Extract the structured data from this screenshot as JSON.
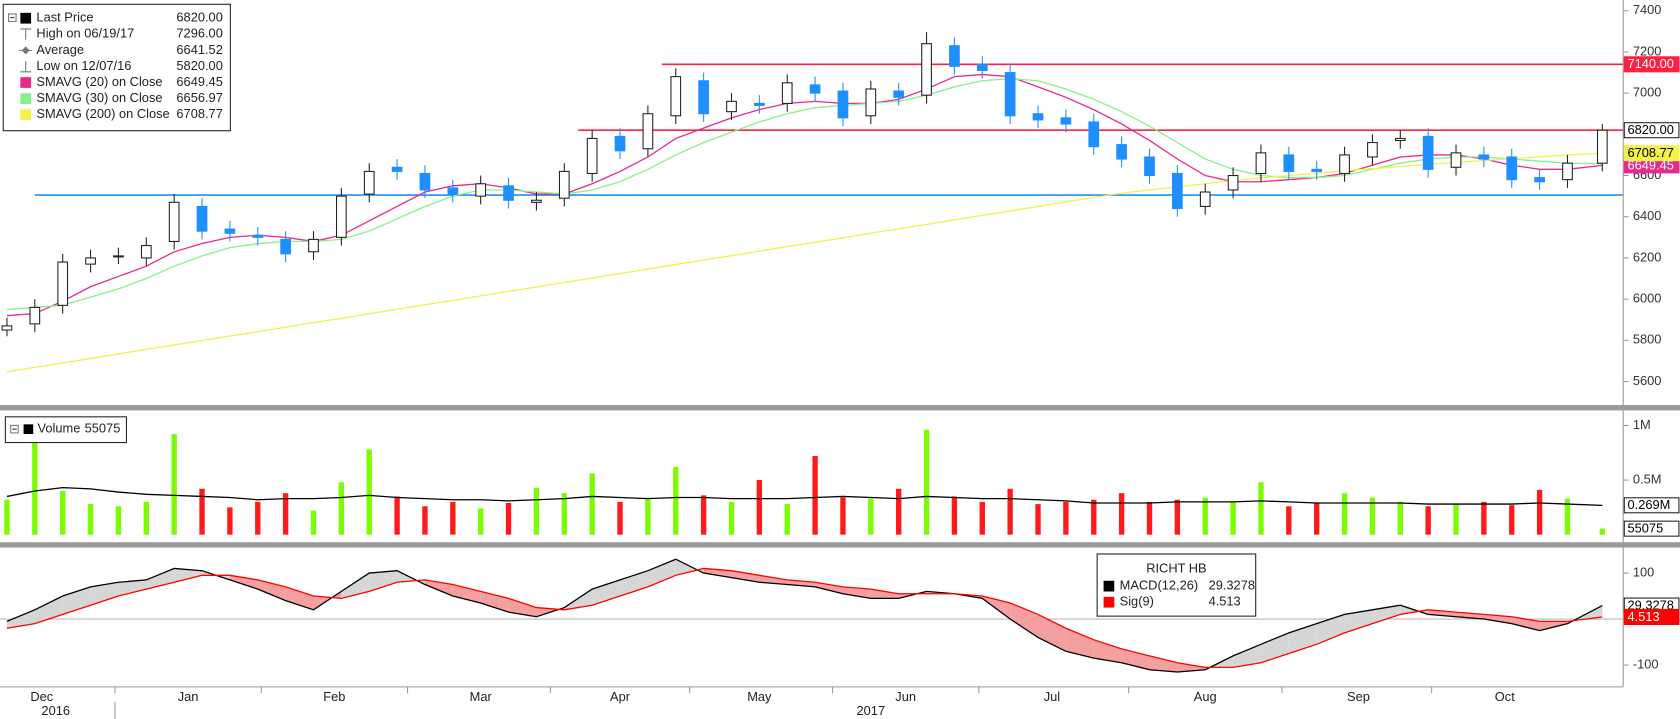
{
  "chart_data": [
    {
      "type": "candlestick",
      "x": [
        0,
        4,
        8,
        12,
        16,
        20,
        24,
        28,
        32,
        36,
        40,
        44,
        48,
        52,
        56,
        60,
        64,
        68,
        72,
        76,
        80,
        84,
        88,
        92,
        96,
        100,
        104,
        108,
        112,
        116,
        120,
        124,
        128,
        132,
        136,
        140,
        144,
        148,
        152,
        156,
        160,
        164,
        168,
        172,
        176,
        180,
        184,
        188,
        192,
        196,
        200,
        204,
        208,
        212,
        216,
        220,
        224,
        229
      ],
      "open": [
        5850,
        5880,
        5970,
        6170,
        6210,
        6200,
        6280,
        6450,
        6340,
        6310,
        6290,
        6230,
        6300,
        6510,
        6640,
        6610,
        6540,
        6500,
        6550,
        6470,
        6490,
        6610,
        6790,
        6730,
        6890,
        7060,
        6910,
        6950,
        6950,
        7040,
        7010,
        6890,
        7010,
        6990,
        7230,
        7140,
        7100,
        6900,
        6880,
        6860,
        6750,
        6690,
        6610,
        6450,
        6530,
        6610,
        6700,
        6630,
        6610,
        6690,
        6770,
        6790,
        6640,
        6700,
        6690,
        6590,
        6580,
        6660
      ],
      "high": [
        5910,
        6000,
        6220,
        6240,
        6250,
        6300,
        6510,
        6490,
        6380,
        6350,
        6330,
        6330,
        6540,
        6660,
        6680,
        6650,
        6580,
        6600,
        6590,
        6520,
        6660,
        6820,
        6830,
        6940,
        7120,
        7100,
        7000,
        6990,
        7090,
        7080,
        7050,
        7060,
        7050,
        7296,
        7270,
        7180,
        7140,
        6940,
        6920,
        6900,
        6790,
        6730,
        6650,
        6560,
        6640,
        6750,
        6740,
        6670,
        6740,
        6800,
        6820,
        6830,
        6750,
        6740,
        6730,
        6630,
        6700,
        6850
      ],
      "low": [
        5820,
        5840,
        5930,
        6130,
        6170,
        6160,
        6240,
        6290,
        6280,
        6260,
        6180,
        6190,
        6260,
        6470,
        6580,
        6490,
        6470,
        6460,
        6440,
        6430,
        6450,
        6570,
        6680,
        6690,
        6850,
        6860,
        6870,
        6900,
        6910,
        6960,
        6840,
        6850,
        6940,
        6950,
        7090,
        7070,
        6850,
        6830,
        6810,
        6700,
        6640,
        6560,
        6400,
        6410,
        6490,
        6570,
        6580,
        6580,
        6570,
        6650,
        6730,
        6590,
        6600,
        6640,
        6540,
        6530,
        6540,
        6620
      ],
      "close": [
        5870,
        5960,
        6180,
        6200,
        6210,
        6260,
        6470,
        6330,
        6320,
        6300,
        6220,
        6290,
        6500,
        6620,
        6620,
        6530,
        6510,
        6560,
        6480,
        6480,
        6620,
        6780,
        6720,
        6900,
        7080,
        6900,
        6960,
        6940,
        7050,
        7000,
        6880,
        7020,
        6980,
        7240,
        7130,
        7110,
        6890,
        6870,
        6850,
        6740,
        6680,
        6600,
        6440,
        6520,
        6600,
        6710,
        6620,
        6620,
        6700,
        6760,
        6780,
        6630,
        6710,
        6680,
        6580,
        6570,
        6660,
        6820
      ],
      "up_color": "#ffffff",
      "down_color": "#1e8fff",
      "stats": [
        {
          "name": "Last Price",
          "value": "6820.00"
        },
        {
          "name": "High on 06/19/17",
          "value": "7296.00"
        },
        {
          "name": "Average",
          "value": "6641.52"
        },
        {
          "name": "Low on 12/07/16",
          "value": "5820.00"
        }
      ],
      "series": [
        {
          "name": "SMAVG (20) on Close",
          "color": "#e8288a",
          "end_label": true,
          "values": [
            5920,
            5930,
            5990,
            6060,
            6110,
            6160,
            6230,
            6270,
            6300,
            6310,
            6300,
            6280,
            6310,
            6380,
            6450,
            6520,
            6550,
            6560,
            6540,
            6510,
            6510,
            6560,
            6620,
            6690,
            6780,
            6830,
            6880,
            6920,
            6950,
            6960,
            6950,
            6950,
            6970,
            7020,
            7080,
            7090,
            7080,
            7030,
            6980,
            6920,
            6850,
            6770,
            6680,
            6600,
            6570,
            6570,
            6580,
            6590,
            6610,
            6650,
            6690,
            6700,
            6700,
            6680,
            6650,
            6630,
            6630,
            6649.45
          ]
        },
        {
          "name": "SMAVG (30) on Close",
          "color": "#88f088",
          "end_label": false,
          "values": [
            5950,
            5960,
            5970,
            6010,
            6050,
            6100,
            6160,
            6210,
            6250,
            6270,
            6280,
            6280,
            6290,
            6330,
            6390,
            6450,
            6500,
            6530,
            6530,
            6520,
            6510,
            6530,
            6570,
            6630,
            6700,
            6760,
            6810,
            6860,
            6900,
            6930,
            6940,
            6950,
            6960,
            6990,
            7030,
            7060,
            7070,
            7060,
            7020,
            6970,
            6910,
            6840,
            6760,
            6680,
            6630,
            6600,
            6590,
            6590,
            6600,
            6630,
            6660,
            6680,
            6690,
            6690,
            6680,
            6670,
            6660,
            6656.97
          ]
        },
        {
          "name": "SMAVG (200) on Close",
          "color": "#f2f24a",
          "end_label": true,
          "values": [
            5647,
            5669,
            5690,
            5712,
            5734,
            5756,
            5777,
            5799,
            5821,
            5842,
            5864,
            5886,
            5907,
            5929,
            5951,
            5973,
            5994,
            6016,
            6038,
            6059,
            6081,
            6103,
            6124,
            6146,
            6168,
            6190,
            6211,
            6233,
            6255,
            6276,
            6298,
            6320,
            6341,
            6363,
            6385,
            6407,
            6428,
            6450,
            6472,
            6493,
            6515,
            6530,
            6545,
            6560,
            6575,
            6588,
            6600,
            6612,
            6623,
            6634,
            6644,
            6654,
            6664,
            6673,
            6682,
            6691,
            6700,
            6708.77
          ]
        }
      ],
      "hlines": [
        {
          "value": 7140,
          "x_start": 94,
          "color": "#ff2040",
          "label": "7140.00"
        },
        {
          "value": 6820,
          "x_start": 82,
          "color": "#ff2040"
        },
        {
          "value": 6505,
          "x_start": 4,
          "color": "#1e8fff"
        }
      ],
      "xlim": [
        -1,
        232
      ],
      "ylim": [
        5486,
        7452
      ],
      "yticks": [
        5600,
        5800,
        6000,
        6200,
        6400,
        6600,
        6800,
        7000,
        7200,
        7400
      ]
    },
    {
      "type": "bar",
      "x": [
        0,
        4,
        8,
        12,
        16,
        20,
        24,
        28,
        32,
        36,
        40,
        44,
        48,
        52,
        56,
        60,
        64,
        68,
        72,
        76,
        80,
        84,
        88,
        92,
        96,
        100,
        104,
        108,
        112,
        116,
        120,
        124,
        128,
        132,
        136,
        140,
        144,
        148,
        152,
        156,
        160,
        164,
        168,
        172,
        176,
        180,
        184,
        188,
        192,
        196,
        200,
        204,
        208,
        212,
        216,
        220,
        224,
        229
      ],
      "series": [
        {
          "name": "Volume",
          "values": [
            320000,
            850000,
            400000,
            280000,
            260000,
            300000,
            920000,
            420000,
            250000,
            300000,
            380000,
            220000,
            480000,
            780000,
            350000,
            260000,
            300000,
            240000,
            290000,
            430000,
            380000,
            560000,
            300000,
            340000,
            620000,
            360000,
            300000,
            500000,
            280000,
            720000,
            340000,
            330000,
            420000,
            960000,
            350000,
            300000,
            420000,
            280000,
            300000,
            320000,
            380000,
            300000,
            320000,
            340000,
            300000,
            480000,
            260000,
            290000,
            380000,
            340000,
            300000,
            260000,
            280000,
            300000,
            270000,
            410000,
            330000,
            55075
          ]
        }
      ],
      "up_color": "#7cfc00",
      "down_color": "#ff1a1a",
      "average": {
        "color": "#000000",
        "last_label": "0.269M",
        "values": [
          350000,
          400000,
          430000,
          420000,
          390000,
          370000,
          360000,
          350000,
          340000,
          320000,
          330000,
          330000,
          340000,
          360000,
          340000,
          330000,
          320000,
          320000,
          310000,
          320000,
          330000,
          350000,
          340000,
          330000,
          340000,
          340000,
          330000,
          330000,
          330000,
          340000,
          350000,
          340000,
          330000,
          350000,
          340000,
          330000,
          330000,
          320000,
          310000,
          290000,
          290000,
          290000,
          300000,
          300000,
          300000,
          310000,
          300000,
          290000,
          290000,
          290000,
          290000,
          280000,
          280000,
          280000,
          280000,
          290000,
          280000,
          269000
        ]
      },
      "xlim": [
        -1,
        232
      ],
      "ylim": [
        -59000,
        1118000
      ],
      "yticks": [
        {
          "value": 500000,
          "label": "0.5M"
        },
        {
          "value": 1000000,
          "label": "1M"
        }
      ]
    },
    {
      "type": "line",
      "title": "RICHT HB",
      "x": [
        0,
        4,
        8,
        12,
        16,
        20,
        24,
        28,
        32,
        36,
        40,
        44,
        48,
        52,
        56,
        60,
        64,
        68,
        72,
        76,
        80,
        84,
        88,
        92,
        96,
        100,
        104,
        108,
        112,
        116,
        120,
        124,
        128,
        132,
        136,
        140,
        144,
        148,
        152,
        156,
        160,
        164,
        168,
        172,
        176,
        180,
        184,
        188,
        192,
        196,
        200,
        204,
        208,
        212,
        216,
        220,
        224,
        229
      ],
      "series": [
        {
          "name": "MACD(12,26)",
          "color": "#000000",
          "values": [
            -5,
            20,
            50,
            70,
            80,
            85,
            110,
            105,
            85,
            65,
            40,
            20,
            60,
            100,
            105,
            75,
            50,
            35,
            15,
            5,
            25,
            65,
            85,
            105,
            130,
            100,
            90,
            80,
            75,
            70,
            55,
            45,
            45,
            60,
            55,
            45,
            0,
            -40,
            -70,
            -85,
            -95,
            -110,
            -115,
            -110,
            -80,
            -55,
            -30,
            -10,
            10,
            20,
            30,
            10,
            5,
            0,
            -10,
            -25,
            -10,
            29.3278
          ]
        },
        {
          "name": "Sig(9)",
          "color": "#ff0000",
          "values": [
            -20,
            -10,
            10,
            30,
            50,
            65,
            80,
            95,
            95,
            85,
            70,
            50,
            45,
            60,
            80,
            85,
            75,
            60,
            45,
            25,
            20,
            30,
            50,
            70,
            95,
            110,
            105,
            95,
            85,
            80,
            70,
            65,
            55,
            55,
            55,
            50,
            35,
            10,
            -20,
            -45,
            -65,
            -80,
            -95,
            -105,
            -105,
            -95,
            -75,
            -55,
            -30,
            -10,
            10,
            20,
            15,
            10,
            5,
            -5,
            -5,
            4.513
          ]
        }
      ],
      "fill_above": "#d6d6d6",
      "fill_below": "#f4a0a0",
      "xlim": [
        -1,
        232
      ],
      "ylim": [
        -145,
        153
      ],
      "yticks": [
        -100,
        100
      ],
      "xticks": [
        {
          "value": 5,
          "label": "Dec"
        },
        {
          "value": 26,
          "label": "Jan"
        },
        {
          "value": 47,
          "label": "Feb"
        },
        {
          "value": 68,
          "label": "Mar"
        },
        {
          "value": 88,
          "label": "Apr"
        },
        {
          "value": 108,
          "label": "May"
        },
        {
          "value": 129,
          "label": "Jun"
        },
        {
          "value": 150,
          "label": "Jul"
        },
        {
          "value": 172,
          "label": "Aug"
        },
        {
          "value": 194,
          "label": "Sep"
        },
        {
          "value": 215,
          "label": "Oct"
        }
      ],
      "year_ticks": [
        {
          "value": 7,
          "label": "2016"
        },
        {
          "value": 124,
          "label": "2017"
        }
      ]
    }
  ]
}
